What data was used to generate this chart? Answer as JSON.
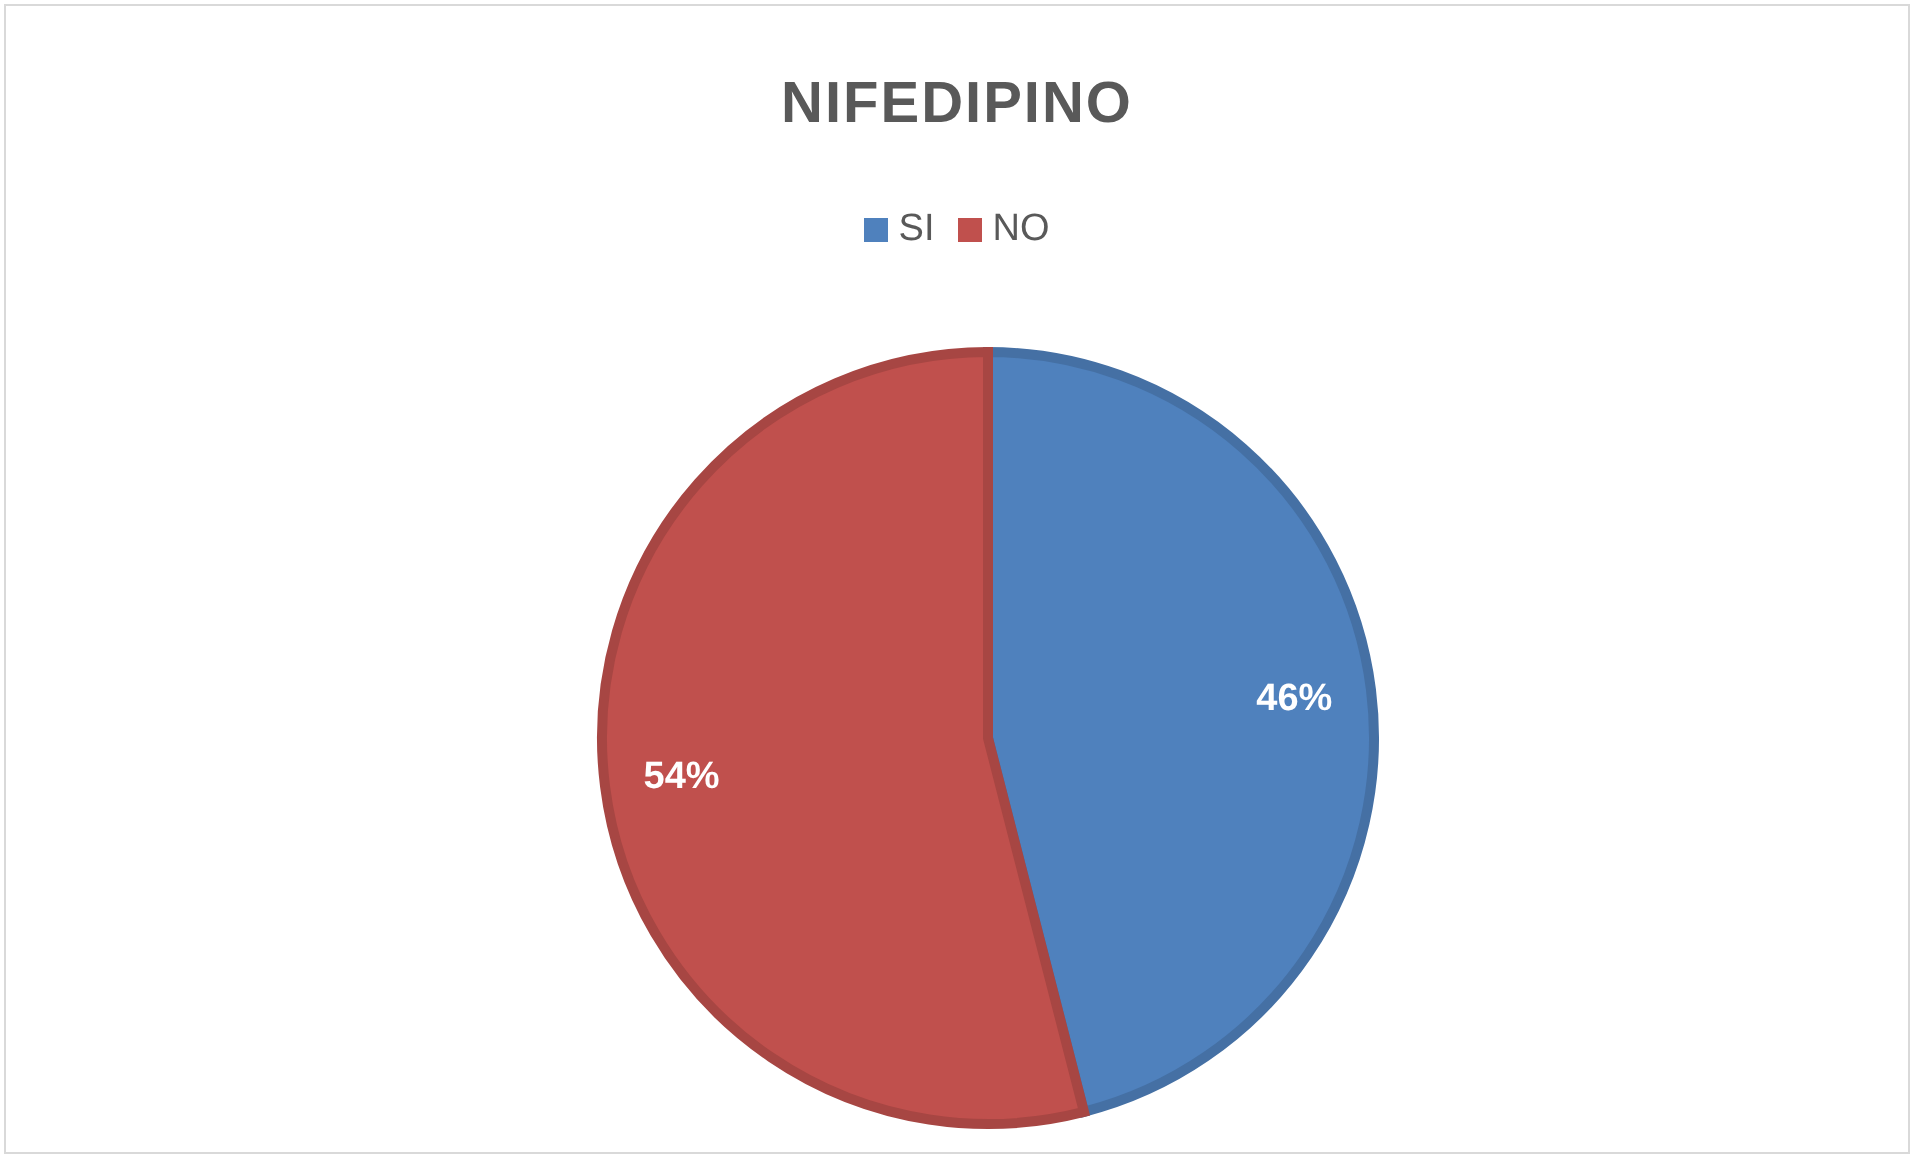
{
  "chart_data": {
    "type": "pie",
    "title": "NIFEDIPINO",
    "categories": [
      "SI",
      "NO"
    ],
    "values": [
      46,
      54
    ],
    "colors": [
      "#4f81bd",
      "#c0504d"
    ],
    "value_labels": [
      "46%",
      "54%"
    ],
    "legend": "top"
  }
}
